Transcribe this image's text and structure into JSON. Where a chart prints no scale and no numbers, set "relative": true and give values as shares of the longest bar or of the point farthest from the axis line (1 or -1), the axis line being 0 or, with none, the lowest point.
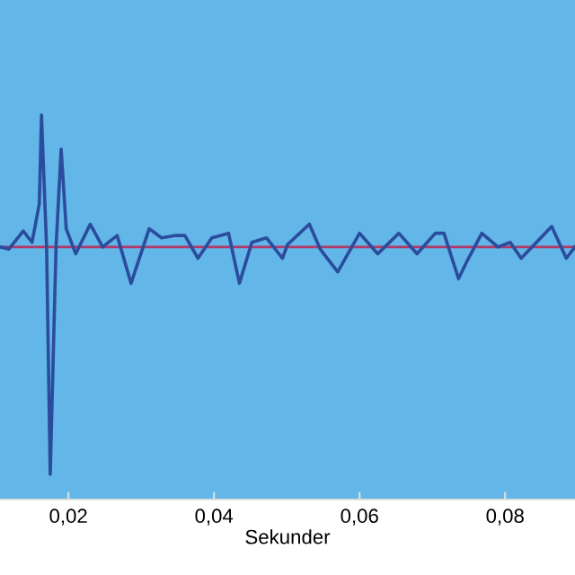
{
  "chart_data": {
    "type": "line",
    "xlabel": "Sekunder",
    "relative": true,
    "xlim": [
      0.0106,
      0.0896
    ],
    "xticks": [
      {
        "value": 0.02,
        "label": "0,02"
      },
      {
        "value": 0.04,
        "label": "0,04"
      },
      {
        "value": 0.06,
        "label": "0,06"
      },
      {
        "value": 0.08,
        "label": "0,08"
      }
    ],
    "tick_labels": "x",
    "grid": false,
    "legend": false,
    "line_style": "solid",
    "marker": "none",
    "ref_lines": [
      {
        "axis": "y",
        "value": 0,
        "color": "#b03a6a"
      }
    ],
    "series": [
      {
        "color": "#2b4c9c",
        "x": [
          0.0106,
          0.0118,
          0.0138,
          0.015,
          0.016,
          0.0163,
          0.017,
          0.0175,
          0.0183,
          0.019,
          0.0197,
          0.021,
          0.023,
          0.0247,
          0.0267,
          0.0286,
          0.0311,
          0.0328,
          0.0346,
          0.036,
          0.0378,
          0.0397,
          0.042,
          0.0435,
          0.0452,
          0.0472,
          0.0494,
          0.0501,
          0.0531,
          0.0546,
          0.057,
          0.06,
          0.0625,
          0.0654,
          0.0679,
          0.0704,
          0.0716,
          0.0736,
          0.0748,
          0.0768,
          0.079,
          0.0807,
          0.0822,
          0.0864,
          0.0884,
          0.0896
        ],
        "values": [
          0,
          -0.01,
          0.07,
          0.02,
          0.19,
          0.58,
          0,
          -1,
          0,
          0.43,
          0.08,
          -0.03,
          0.1,
          0,
          0.05,
          -0.16,
          0.08,
          0.04,
          0.05,
          0.05,
          -0.05,
          0.04,
          0.06,
          -0.16,
          0.02,
          0.04,
          -0.05,
          0.01,
          0.1,
          -0.01,
          -0.11,
          0.06,
          -0.03,
          0.06,
          -0.03,
          0.06,
          0.06,
          -0.14,
          -0.06,
          0.06,
          0,
          0.02,
          -0.05,
          0.09,
          -0.05,
          0
        ]
      }
    ]
  }
}
